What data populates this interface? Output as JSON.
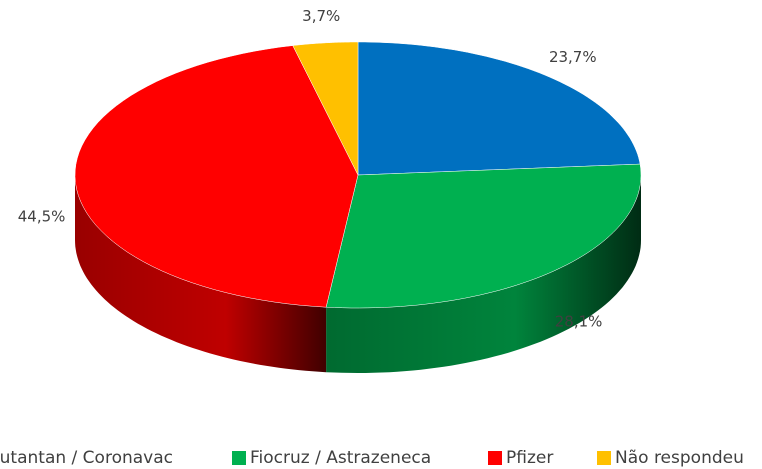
{
  "chart_data": {
    "type": "pie3d",
    "series": [
      {
        "name": "Butantan / Coronavac",
        "color": "#0070c0",
        "values": [
          23.7
        ],
        "value_labels": [
          "23,7%"
        ]
      },
      {
        "name": "Fiocruz / Astrazeneca",
        "color": "#00b050",
        "values": [
          28.1
        ],
        "value_labels": [
          "28,1%"
        ]
      },
      {
        "name": "Pfizer",
        "color": "#ff0000",
        "values": [
          44.5
        ],
        "value_labels": [
          "44,5%"
        ]
      },
      {
        "name": "Não respondeu",
        "color": "#ffc000",
        "values": [
          3.7
        ],
        "value_labels": [
          "3,7%"
        ]
      }
    ],
    "legend": "bottom"
  }
}
